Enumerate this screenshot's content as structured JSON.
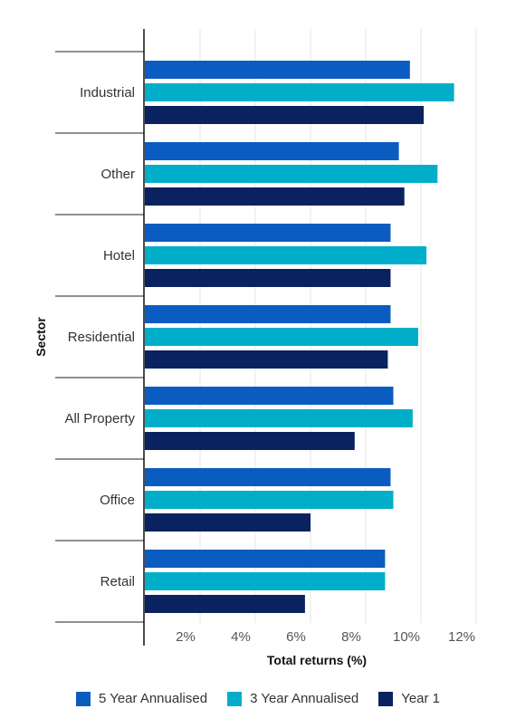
{
  "chart_data": {
    "type": "bar",
    "orientation": "horizontal",
    "categories": [
      "Industrial",
      "Other",
      "Hotel",
      "Residential",
      "All Property",
      "Office",
      "Retail"
    ],
    "series": [
      {
        "name": "5 Year Annualised",
        "color": "#0a5cc0",
        "values": [
          9.6,
          9.2,
          8.9,
          8.9,
          9.0,
          8.9,
          8.7
        ]
      },
      {
        "name": "3 Year Annualised",
        "color": "#00aec9",
        "values": [
          11.2,
          10.6,
          10.2,
          9.9,
          9.7,
          9.0,
          8.7
        ]
      },
      {
        "name": "Year 1",
        "color": "#0b2260",
        "values": [
          10.1,
          9.4,
          8.9,
          8.8,
          7.6,
          6.0,
          5.8
        ]
      }
    ],
    "xlabel": "Total returns (%)",
    "ylabel": "Sector",
    "xlim": [
      0,
      12
    ],
    "xticks": [
      "2%",
      "4%",
      "6%",
      "8%",
      "10%",
      "12%"
    ],
    "grid": true,
    "legend_position": "bottom"
  }
}
